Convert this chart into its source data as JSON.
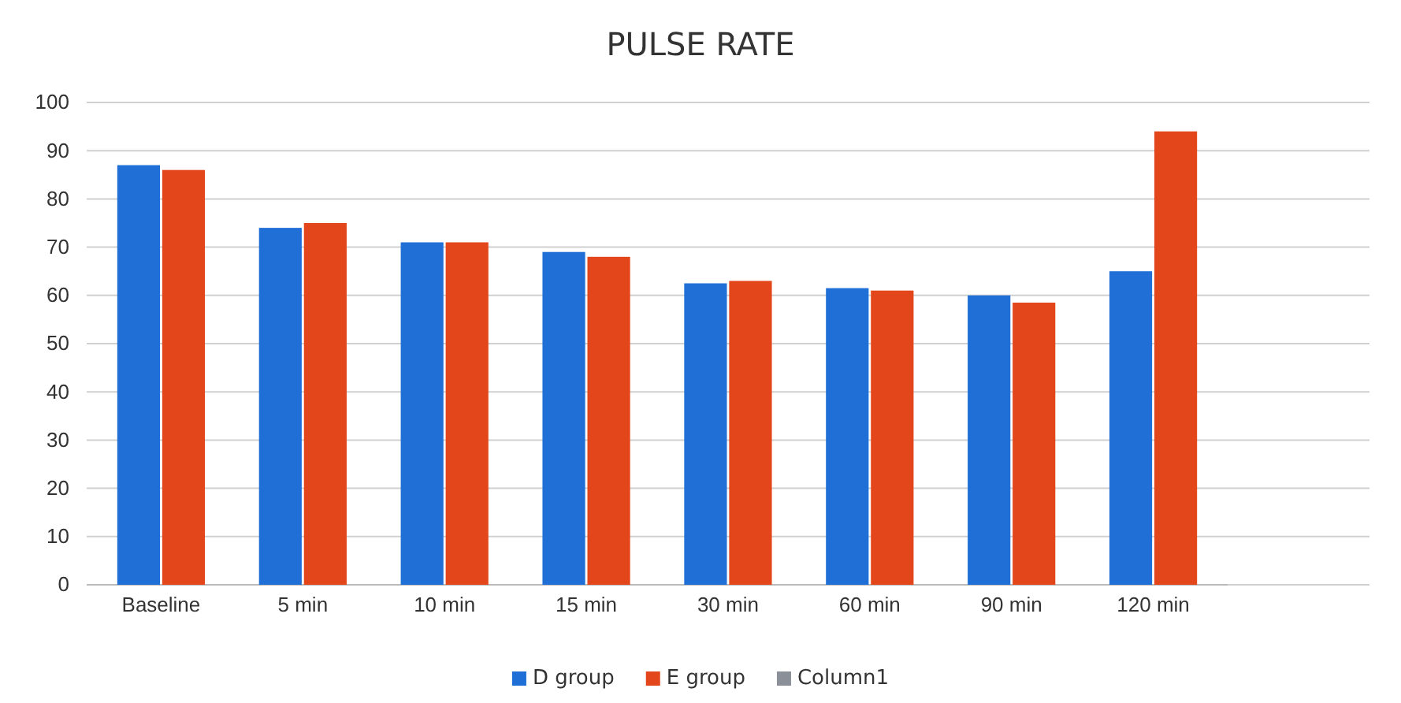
{
  "chart_data": {
    "type": "bar",
    "title": "PULSE RATE",
    "categories": [
      "Baseline",
      "5 min",
      "10 min",
      "15 min",
      "30 min",
      "60 min",
      "90 min",
      "120 min"
    ],
    "series": [
      {
        "name": "D group",
        "color": "#1f6fd6",
        "values": [
          87,
          74,
          71,
          69,
          62.5,
          61.5,
          60,
          65
        ]
      },
      {
        "name": "E group",
        "color": "#e2461a",
        "values": [
          86,
          75,
          71,
          68,
          63,
          61,
          58.5,
          94
        ]
      },
      {
        "name": "Column1",
        "color": "#8a8f98",
        "values": [
          null,
          null,
          null,
          null,
          null,
          null,
          null,
          null
        ]
      }
    ],
    "ylim": [
      0,
      100
    ],
    "yticks": [
      0,
      10,
      20,
      30,
      40,
      50,
      60,
      70,
      80,
      90,
      100
    ],
    "grid": "y",
    "legend": "bottom"
  }
}
